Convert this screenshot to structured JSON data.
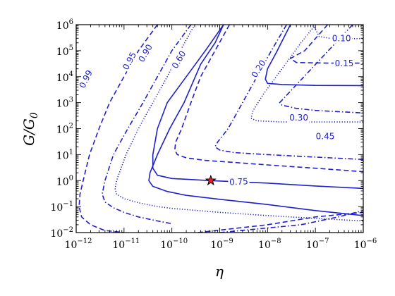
{
  "chart_data": {
    "type": "line",
    "title": "",
    "xlabel": "η",
    "ylabel": "G/G",
    "ylabel_subscript": "0",
    "x_scale": "log",
    "y_scale": "log",
    "xlim": [
      1e-12,
      1e-06
    ],
    "ylim": [
      0.01,
      1000000
    ],
    "x_ticks": [
      {
        "base": "10",
        "exp": "−12",
        "value": 1e-12
      },
      {
        "base": "10",
        "exp": "−11",
        "value": 1e-11
      },
      {
        "base": "10",
        "exp": "−10",
        "value": 1e-10
      },
      {
        "base": "10",
        "exp": "−9",
        "value": 1e-09
      },
      {
        "base": "10",
        "exp": "−8",
        "value": 1e-08
      },
      {
        "base": "10",
        "exp": "−7",
        "value": 1e-07
      },
      {
        "base": "10",
        "exp": "−6",
        "value": 1e-06
      }
    ],
    "y_ticks": [
      {
        "base": "10",
        "exp": "−2",
        "value": 0.01
      },
      {
        "base": "10",
        "exp": "−1",
        "value": 0.1
      },
      {
        "base": "10",
        "exp": "0",
        "value": 1
      },
      {
        "base": "10",
        "exp": "1",
        "value": 10
      },
      {
        "base": "10",
        "exp": "2",
        "value": 100
      },
      {
        "base": "10",
        "exp": "3",
        "value": 1000
      },
      {
        "base": "10",
        "exp": "4",
        "value": 10000
      },
      {
        "base": "10",
        "exp": "5",
        "value": 100000
      },
      {
        "base": "10",
        "exp": "6",
        "value": 1000000
      }
    ],
    "color": "#1f1fcc",
    "marker": {
      "x": 6.5e-10,
      "y": 1.0,
      "shape": "star",
      "fill": "#e8202a",
      "stroke": "#000000"
    },
    "series": [
      {
        "label": "0.99",
        "style": "dashed",
        "label_at": [
          1.6e-12,
          8000
        ],
        "label_angle": -64,
        "points": [
          [
            5e-11,
            1000000
          ],
          [
            2e-11,
            100000
          ],
          [
            1e-11,
            10000
          ],
          [
            5e-12,
            1000
          ],
          [
            3e-12,
            100
          ],
          [
            1.9e-12,
            10
          ],
          [
            1.4e-12,
            1
          ],
          [
            1.2e-12,
            0.3
          ],
          [
            1.15e-12,
            0.1
          ],
          [
            1.3e-12,
            0.04
          ],
          [
            2e-12,
            0.02
          ],
          [
            4e-12,
            0.012
          ],
          [
            1e-11,
            0.01
          ]
        ]
      },
      {
        "label": "",
        "style": "dashdot",
        "points": [
          [
            2.5e-10,
            1000000
          ],
          [
            1e-10,
            100000
          ],
          [
            5e-11,
            10000
          ],
          [
            2.5e-11,
            1000
          ],
          [
            1.2e-11,
            100
          ],
          [
            6e-12,
            10
          ],
          [
            4e-12,
            1
          ],
          [
            3.5e-12,
            0.3
          ],
          [
            4e-12,
            0.15
          ],
          [
            6e-12,
            0.09
          ],
          [
            1e-11,
            0.06
          ],
          [
            2e-11,
            0.04
          ],
          [
            5e-11,
            0.028
          ],
          [
            1e-10,
            0.022
          ]
        ]
      },
      {
        "label": "0.95",
        "style": "dotted",
        "label_at": [
          1.3e-11,
          40000
        ],
        "label_angle": -62,
        "points": [
          [
            3e-10,
            1000000
          ],
          [
            1.5e-10,
            100000
          ],
          [
            8e-11,
            10000
          ],
          [
            4e-11,
            1000
          ],
          [
            2e-11,
            100
          ],
          [
            1.1e-11,
            10
          ],
          [
            7e-12,
            1
          ],
          [
            6.5e-12,
            0.5
          ],
          [
            7e-12,
            0.3
          ],
          [
            1e-11,
            0.2
          ],
          [
            2e-11,
            0.14
          ],
          [
            5e-11,
            0.1
          ],
          [
            1e-10,
            0.085
          ],
          [
            1e-09,
            0.06
          ],
          [
            1e-08,
            0.045
          ],
          [
            1e-07,
            0.035
          ],
          [
            1e-06,
            0.028
          ]
        ]
      },
      {
        "label": "0.90",
        "style": "solid",
        "label_at": [
          2.8e-11,
          80000
        ],
        "label_angle": -60,
        "points": [
          [
            1.2e-09,
            1000000
          ],
          [
            8e-10,
            200000
          ],
          [
            4e-10,
            30000
          ],
          [
            1.8e-10,
            1000
          ],
          [
            9e-11,
            100
          ],
          [
            5e-11,
            10
          ],
          [
            3.5e-11,
            2
          ],
          [
            3.3e-11,
            1
          ],
          [
            4e-11,
            0.6
          ],
          [
            8e-11,
            0.38
          ],
          [
            2e-10,
            0.27
          ],
          [
            1e-09,
            0.19
          ],
          [
            1e-08,
            0.12
          ],
          [
            1e-07,
            0.07
          ],
          [
            1e-06,
            0.045
          ]
        ]
      },
      {
        "label": "0.60",
        "style": "dashed",
        "label_at": [
          1.4e-10,
          45000
        ],
        "label_angle": -60,
        "points": [
          [
            1.6e-09,
            1000000
          ],
          [
            8e-10,
            100000
          ],
          [
            4e-10,
            10000
          ],
          [
            2.5e-10,
            1000
          ],
          [
            1.6e-10,
            100
          ],
          [
            1.2e-10,
            30
          ],
          [
            1.15e-10,
            15
          ],
          [
            1.3e-10,
            10
          ],
          [
            2e-10,
            7.5
          ],
          [
            5e-10,
            6
          ],
          [
            2e-09,
            5
          ],
          [
            1e-08,
            4
          ],
          [
            1e-07,
            3
          ],
          [
            1e-06,
            2.2
          ]
        ]
      },
      {
        "label": "0.75",
        "style": "solid",
        "label_at": [
          2.5e-09,
          0.9
        ],
        "label_angle": -3,
        "points": [
          [
            1.2e-09,
            1000000
          ],
          [
            5e-10,
            100000
          ],
          [
            2e-10,
            10000
          ],
          [
            8e-11,
            1000
          ],
          [
            5e-11,
            100
          ],
          [
            4e-11,
            10
          ],
          [
            4e-11,
            3
          ],
          [
            5e-11,
            1.6
          ],
          [
            1e-10,
            1.2
          ],
          [
            6.5e-10,
            1.0
          ],
          [
            1e-08,
            0.8
          ],
          [
            1e-07,
            0.62
          ],
          [
            1e-06,
            0.5
          ]
        ]
      },
      {
        "label": "0.20",
        "style": "solid",
        "label_at": [
          6.5e-09,
          20000
        ],
        "label_angle": -58,
        "points": [
          [
            3e-08,
            1000000
          ],
          [
            1.5e-08,
            80000
          ],
          [
            1e-08,
            20000
          ],
          [
            9e-09,
            8000
          ],
          [
            1e-08,
            5500
          ],
          [
            2e-08,
            5000
          ],
          [
            1e-07,
            4600
          ],
          [
            1e-06,
            4500
          ]
        ]
      },
      {
        "label": "",
        "style": "dashdot",
        "points": [
          [
            2.5e-08,
            1000000
          ],
          [
            1.2e-08,
            100000
          ],
          [
            6e-09,
            10000
          ],
          [
            3e-09,
            1000
          ],
          [
            1.5e-09,
            100
          ],
          [
            9e-10,
            30
          ],
          [
            8e-10,
            20
          ],
          [
            1e-09,
            15
          ],
          [
            2e-09,
            12
          ],
          [
            1e-08,
            10
          ],
          [
            1e-07,
            8
          ],
          [
            1e-06,
            6.5
          ]
        ]
      },
      {
        "label": "0.30",
        "style": "dotted",
        "label_at": [
          4.5e-08,
          260
        ],
        "label_angle": 0,
        "points": [
          [
            1e-07,
            1000000
          ],
          [
            5e-08,
            200000
          ],
          [
            2e-08,
            20000
          ],
          [
            8e-09,
            2000
          ],
          [
            5e-09,
            500
          ],
          [
            4.5e-09,
            250
          ],
          [
            6e-09,
            200
          ],
          [
            2e-08,
            180
          ],
          [
            1e-07,
            180
          ],
          [
            1e-06,
            180
          ]
        ]
      },
      {
        "label": "0.15",
        "style": "dashed",
        "label_at": [
          4e-07,
          32000
        ],
        "label_angle": 0,
        "points": [
          [
            1.8e-07,
            1000000
          ],
          [
            6e-08,
            100000
          ],
          [
            3e-08,
            50000
          ],
          [
            4e-08,
            35000
          ],
          [
            2e-07,
            33000
          ],
          [
            1e-06,
            33000
          ]
        ]
      },
      {
        "label": "0.10",
        "style": "dotted",
        "label_at": [
          3.5e-07,
          300000
        ],
        "label_angle": 0,
        "points": [
          [
            9e-08,
            1000000
          ],
          [
            1.2e-07,
            350000
          ],
          [
            2e-07,
            300000
          ],
          [
            5e-07,
            290000
          ],
          [
            1e-06,
            290000
          ]
        ]
      },
      {
        "label": "0.45",
        "style": "dashdot",
        "label_at": [
          1.6e-07,
          50
        ],
        "label_angle": 0,
        "points": [
          [
            6e-07,
            1000000
          ],
          [
            1.8e-08,
            1000
          ],
          [
            2e-08,
            800
          ],
          [
            4e-08,
            600
          ],
          [
            1e-07,
            500
          ],
          [
            1e-06,
            400
          ]
        ]
      },
      {
        "label": "",
        "style": "dashdot",
        "points": [
          [
            1e-09,
            0.01
          ],
          [
            5e-08,
            0.02
          ],
          [
            3e-07,
            0.04
          ],
          [
            1e-06,
            0.07
          ]
        ]
      },
      {
        "label": "",
        "style": "dashed",
        "points": [
          [
            3.5e-10,
            0.01
          ],
          [
            1e-08,
            0.02
          ],
          [
            1e-07,
            0.04
          ],
          [
            1e-06,
            0.06
          ]
        ]
      }
    ]
  }
}
